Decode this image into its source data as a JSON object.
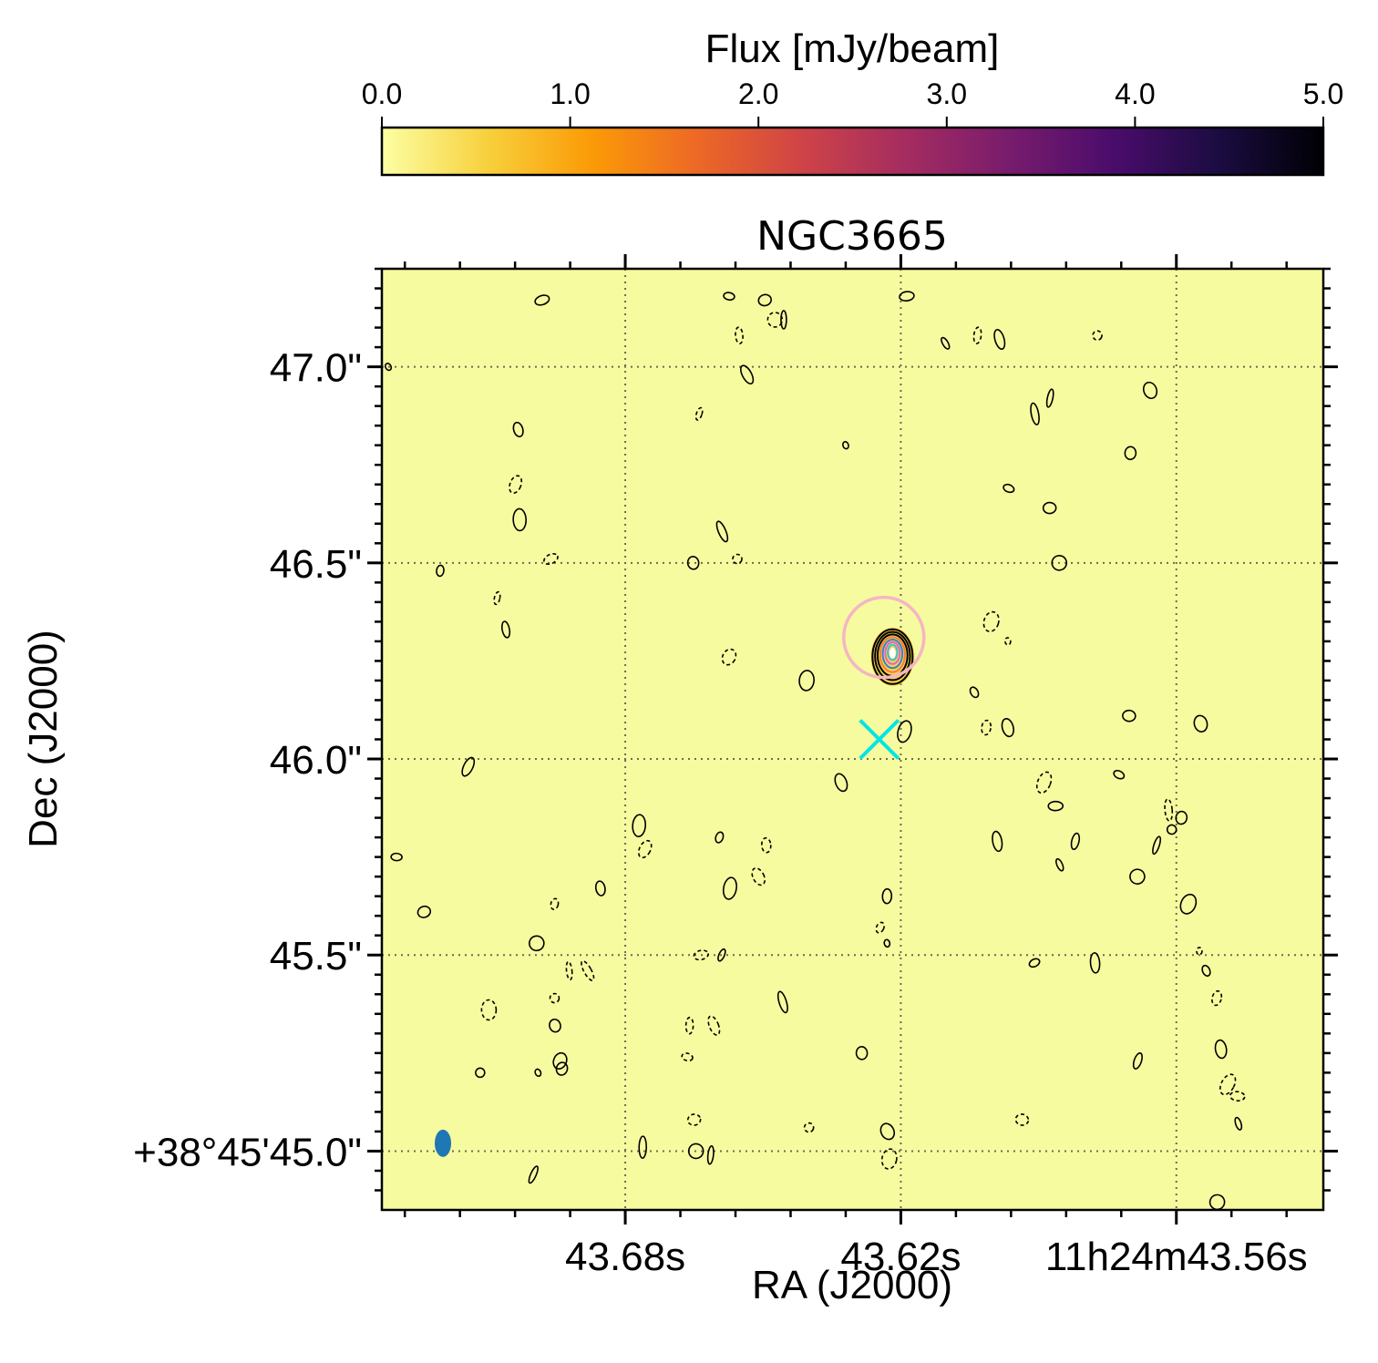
{
  "chart_data": {
    "type": "heatmap",
    "title": "NGC3665",
    "xlabel": "RA (J2000)",
    "ylabel": "Dec (J2000)",
    "grid": true,
    "colorbar": {
      "label": "Flux [mJy/beam]",
      "location": "top",
      "colormap": "inferno_r",
      "range": [
        0.0,
        5.0
      ],
      "ticks": [
        0.0,
        1.0,
        2.0,
        3.0,
        4.0,
        5.0
      ],
      "tick_labels": [
        "0.0",
        "1.0",
        "2.0",
        "3.0",
        "4.0",
        "5.0"
      ],
      "stops": [
        "#fcffa4",
        "#f7d13d",
        "#fb9b06",
        "#ed6925",
        "#cf4446",
        "#a52c60",
        "#781c6d",
        "#4a0c6b",
        "#1b0c41",
        "#000004"
      ]
    },
    "background_color": "#f7fb9f",
    "x_axis": {
      "ticks": [
        {
          "value_sec": 43.68,
          "label": "43.68s"
        },
        {
          "value_sec": 43.62,
          "label": "43.62s"
        },
        {
          "value_sec": 43.56,
          "label": "11h24m43.56s"
        }
      ],
      "lim_sec": [
        43.733,
        43.528
      ]
    },
    "y_axis": {
      "ticks": [
        {
          "value_arcsec": 47.0,
          "label": "47.0\""
        },
        {
          "value_arcsec": 46.5,
          "label": "46.5\""
        },
        {
          "value_arcsec": 46.0,
          "label": "46.0\""
        },
        {
          "value_arcsec": 45.5,
          "label": "45.5\""
        },
        {
          "value_arcsec": 45.0,
          "label": "+38°45'45.0\""
        }
      ],
      "lim_arcsec": [
        44.85,
        47.25
      ]
    },
    "source": {
      "ra_sec": 43.6218,
      "dec_arcsec": 46.27,
      "contour_colors": [
        "#000000",
        "#000000",
        "#000000",
        "#f07f3a",
        "#3a7fd0",
        "#e066c8",
        "#40c0d0"
      ]
    },
    "circle_marker": {
      "ra_sec": 43.6237,
      "dec_arcsec": 46.31,
      "color": "#f5b6c4"
    },
    "cross_marker": {
      "ra_sec": 43.6247,
      "dec_arcsec": 46.05,
      "color": "#00e5e5"
    },
    "beam": {
      "ra_sec": 43.7197,
      "dec_arcsec": 45.02,
      "color": "#1f77b4"
    },
    "noise_contours": [
      [
        43.7316,
        47.0,
        1
      ],
      [
        43.7203,
        46.48,
        1
      ],
      [
        43.7033,
        46.84,
        1
      ],
      [
        43.7039,
        46.7,
        -1
      ],
      [
        43.703,
        46.61,
        1
      ],
      [
        43.6962,
        46.51,
        -1
      ],
      [
        43.7079,
        46.41,
        -1
      ],
      [
        43.706,
        46.33,
        1
      ],
      [
        43.7142,
        45.98,
        1
      ],
      [
        43.7298,
        45.75,
        1
      ],
      [
        43.7238,
        45.61,
        1
      ],
      [
        43.6993,
        45.53,
        1
      ],
      [
        43.6922,
        45.46,
        -1
      ],
      [
        43.6882,
        45.46,
        -1
      ],
      [
        43.6954,
        45.39,
        -1
      ],
      [
        43.6953,
        45.32,
        1
      ],
      [
        43.6942,
        45.23,
        1
      ],
      [
        43.7097,
        45.36,
        -1
      ],
      [
        43.699,
        45.2,
        1
      ],
      [
        43.6954,
        45.63,
        -1
      ],
      [
        43.6854,
        45.67,
        1
      ],
      [
        43.6757,
        45.77,
        -1
      ],
      [
        43.677,
        45.83,
        1
      ],
      [
        43.6981,
        47.17,
        1
      ],
      [
        43.6639,
        46.88,
        -1
      ],
      [
        43.6552,
        47.08,
        -1
      ],
      [
        43.6535,
        46.98,
        1
      ],
      [
        43.6574,
        47.18,
        1
      ],
      [
        43.6496,
        47.17,
        1
      ],
      [
        43.6474,
        47.12,
        -1
      ],
      [
        43.6455,
        47.12,
        1
      ],
      [
        43.6589,
        46.58,
        1
      ],
      [
        43.6556,
        46.51,
        -1
      ],
      [
        43.6652,
        46.5,
        1
      ],
      [
        43.6574,
        46.26,
        -1
      ],
      [
        43.6405,
        46.2,
        1
      ],
      [
        43.632,
        46.8,
        1
      ],
      [
        43.6595,
        45.8,
        1
      ],
      [
        43.6493,
        45.78,
        -1
      ],
      [
        43.651,
        45.7,
        -1
      ],
      [
        43.6572,
        45.67,
        1
      ],
      [
        43.6635,
        45.5,
        -1
      ],
      [
        43.659,
        45.5,
        1
      ],
      [
        43.666,
        45.32,
        -1
      ],
      [
        43.6607,
        45.32,
        -1
      ],
      [
        43.6665,
        45.24,
        -1
      ],
      [
        43.665,
        45.08,
        -1
      ],
      [
        43.6646,
        45.0,
        1
      ],
      [
        43.6614,
        44.99,
        1
      ],
      [
        43.6457,
        45.38,
        1
      ],
      [
        43.64,
        45.06,
        -1
      ],
      [
        43.6285,
        45.25,
        1
      ],
      [
        43.6229,
        45.05,
        1
      ],
      [
        43.6225,
        44.98,
        -1
      ],
      [
        43.623,
        45.53,
        1
      ],
      [
        43.6245,
        45.57,
        -1
      ],
      [
        43.623,
        45.65,
        1
      ],
      [
        43.633,
        45.94,
        1
      ],
      [
        43.6192,
        46.07,
        1
      ],
      [
        43.6187,
        47.18,
        1
      ],
      [
        43.6103,
        47.06,
        1
      ],
      [
        43.6033,
        47.08,
        -1
      ],
      [
        43.5985,
        47.07,
        1
      ],
      [
        43.5965,
        46.69,
        1
      ],
      [
        43.5876,
        46.64,
        1
      ],
      [
        43.5855,
        46.5,
        1
      ],
      [
        43.5875,
        46.92,
        1
      ],
      [
        43.5908,
        46.88,
        1
      ],
      [
        43.5772,
        47.08,
        -1
      ],
      [
        43.57,
        46.78,
        1
      ],
      [
        43.5657,
        46.94,
        1
      ],
      [
        43.6003,
        46.35,
        -1
      ],
      [
        43.5967,
        46.3,
        -1
      ],
      [
        43.604,
        46.17,
        1
      ],
      [
        43.6014,
        46.08,
        -1
      ],
      [
        43.5967,
        46.08,
        1
      ],
      [
        43.5888,
        45.94,
        -1
      ],
      [
        43.5863,
        45.88,
        1
      ],
      [
        43.5854,
        45.73,
        1
      ],
      [
        43.582,
        45.79,
        1
      ],
      [
        43.599,
        45.79,
        1
      ],
      [
        43.5725,
        45.96,
        1
      ],
      [
        43.5703,
        46.11,
        1
      ],
      [
        43.5685,
        45.7,
        1
      ],
      [
        43.5643,
        45.78,
        1
      ],
      [
        43.5617,
        45.87,
        -1
      ],
      [
        43.561,
        45.82,
        1
      ],
      [
        43.5589,
        45.85,
        1
      ],
      [
        43.5547,
        46.09,
        1
      ],
      [
        43.5574,
        45.63,
        1
      ],
      [
        43.555,
        45.51,
        -1
      ],
      [
        43.5535,
        45.46,
        1
      ],
      [
        43.5512,
        45.39,
        -1
      ],
      [
        43.5503,
        45.26,
        1
      ],
      [
        43.5488,
        45.17,
        -1
      ],
      [
        43.5467,
        45.14,
        -1
      ],
      [
        43.5465,
        45.07,
        1
      ],
      [
        43.5684,
        45.23,
        1
      ],
      [
        43.5777,
        45.48,
        1
      ],
      [
        43.5909,
        45.48,
        1
      ],
      [
        43.5936,
        45.08,
        -1
      ],
      [
        43.5511,
        44.87,
        1
      ],
      [
        43.7,
        44.94,
        1
      ],
      [
        43.6762,
        45.01,
        1
      ],
      [
        43.7116,
        45.2,
        1
      ],
      [
        43.6938,
        45.21,
        1
      ]
    ]
  }
}
